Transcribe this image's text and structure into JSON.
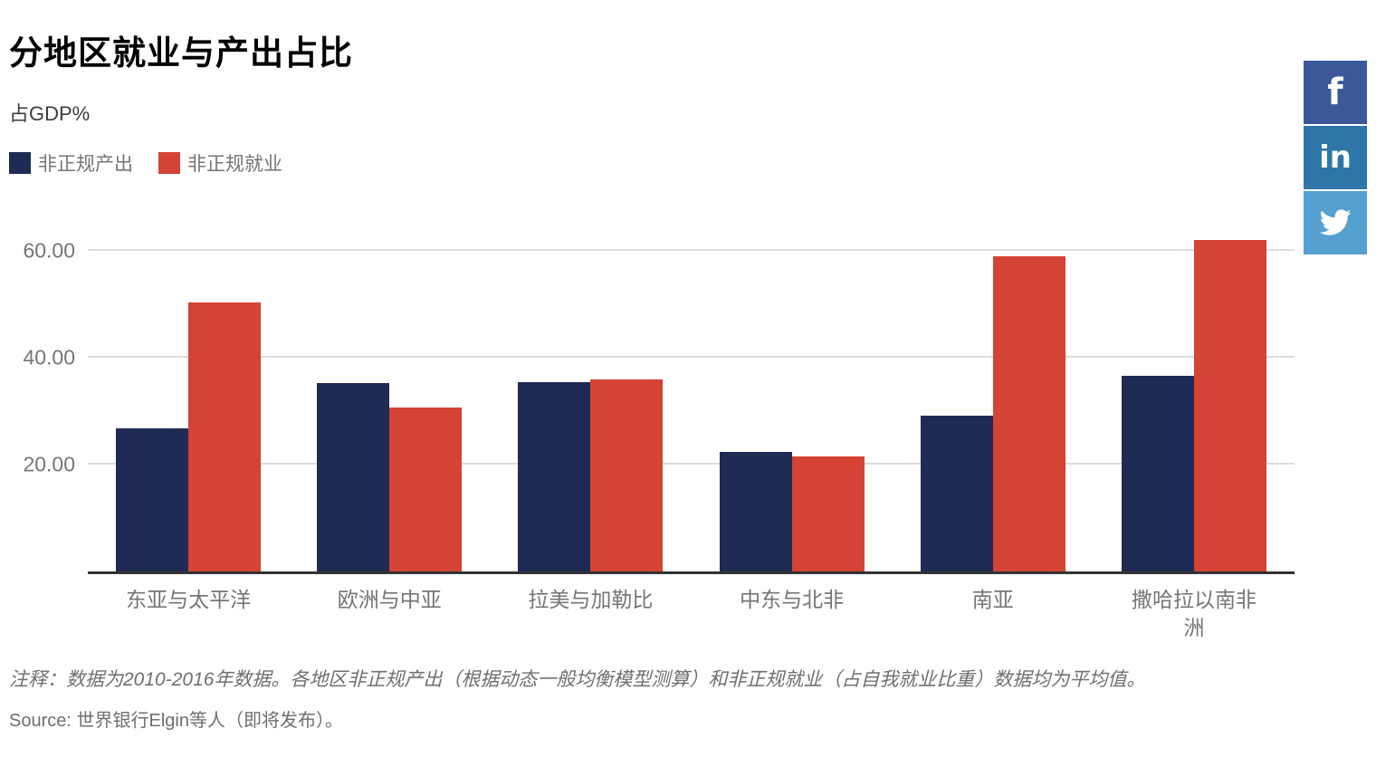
{
  "header": {
    "title": "分地区就业与产出占比",
    "subtitle": "占GDP%"
  },
  "social": [
    {
      "name": "facebook",
      "glyph": "f",
      "color": "#3b5998"
    },
    {
      "name": "linkedin",
      "glyph": "in",
      "color": "#2d76a7"
    },
    {
      "name": "twitter",
      "glyph": "twitter-bird",
      "color": "#55a0ce"
    }
  ],
  "chart_data": {
    "type": "bar",
    "title": "分地区就业与产出占比",
    "xlabel": "",
    "ylabel": "占GDP%",
    "categories": [
      "东亚与太平洋",
      "欧洲与中亚",
      "拉美与加勒比",
      "中东与北非",
      "南亚",
      "撒哈拉以南非洲"
    ],
    "series": [
      {
        "name": "非正规产出",
        "color": "#1f2a55",
        "values": [
          26.8,
          35.2,
          35.5,
          22.4,
          29.2,
          36.6
        ]
      },
      {
        "name": "非正规就业",
        "color": "#d44334",
        "values": [
          50.3,
          30.6,
          35.9,
          21.6,
          58.9,
          62.0
        ]
      }
    ],
    "ylim": [
      0,
      65
    ],
    "yticks": [
      20,
      40,
      60
    ],
    "ytick_labels": [
      "20.00",
      "40.00",
      "60.00"
    ],
    "grid": true,
    "legend_position": "top-left"
  },
  "footer": {
    "note": "注释：数据为2010-2016年数据。各地区非正规产出（根据动态一般均衡模型测算）和非正规就业（占自我就业比重）数据均为平均值。",
    "source": "Source: 世界银行Elgin等人（即将发布）。"
  }
}
